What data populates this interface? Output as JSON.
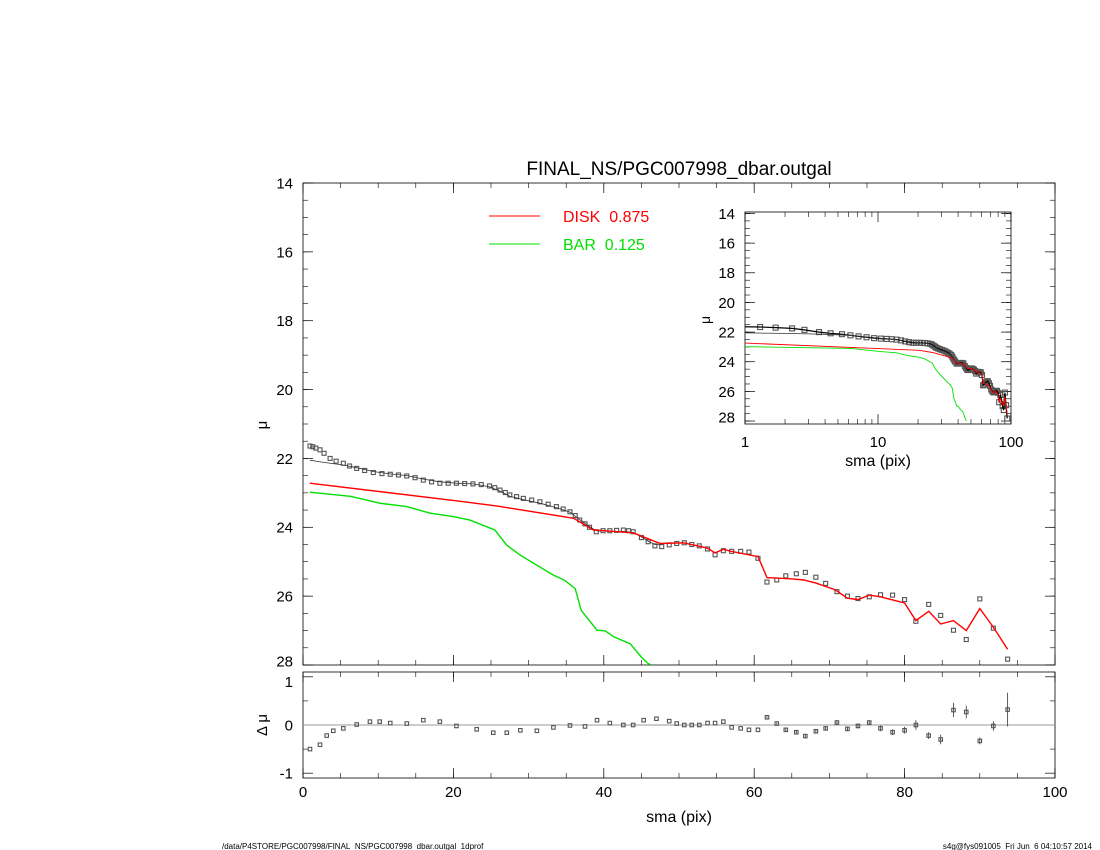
{
  "chart_data": [
    {
      "type": "scatter",
      "panel": "main-profile",
      "title": "FINAL_NS/PGC007998_dbar.outgal",
      "xlabel": "",
      "ylabel": "μ",
      "xlim": [
        0,
        100
      ],
      "ylim": [
        28,
        14
      ],
      "y_inverted": true,
      "xticks": [
        0,
        20,
        40,
        60,
        80,
        100
      ],
      "yticks": [
        14,
        16,
        18,
        20,
        22,
        24,
        26,
        28
      ],
      "legend_position": "top-center",
      "legend": [
        {
          "label": "DISK  0.875",
          "color": "#ff0000"
        },
        {
          "label": "BAR  0.125",
          "color": "#00e000"
        }
      ],
      "data": {
        "x": [
          0.93,
          1.3,
          1.7,
          2.26,
          2.8,
          3.6,
          4.4,
          5.36,
          6.2,
          7.14,
          8.2,
          9.35,
          10.5,
          11.6,
          12.7,
          13.8,
          14.9,
          16.0,
          17.1,
          18.2,
          19.3,
          20.4,
          21.5,
          22.6,
          23.7,
          24.8,
          25.5,
          26.2,
          26.9,
          27.5,
          28.4,
          29.3,
          30.4,
          31.5,
          32.6,
          33.7,
          34.6,
          35.5,
          36.2,
          36.8,
          37.5,
          38.1,
          39.0,
          39.9,
          40.8,
          41.7,
          42.6,
          43.3,
          43.9,
          45.0,
          45.9,
          46.8,
          47.7,
          48.7,
          49.7,
          50.7,
          51.7,
          52.7,
          53.8,
          54.8,
          55.9,
          57.0,
          58.2,
          59.3,
          60.5,
          61.7,
          63.0,
          64.2,
          65.6,
          66.8,
          68.2,
          69.5,
          71.0,
          72.4,
          73.8,
          75.3,
          76.8,
          78.4,
          80.0,
          81.5,
          83.2,
          84.8,
          86.5,
          88.2,
          90.0,
          91.8,
          93.7
        ],
        "y": [
          21.64,
          21.66,
          21.7,
          21.75,
          21.85,
          22.0,
          22.08,
          22.14,
          22.22,
          22.29,
          22.35,
          22.41,
          22.44,
          22.46,
          22.48,
          22.51,
          22.56,
          22.63,
          22.68,
          22.72,
          22.72,
          22.72,
          22.73,
          22.74,
          22.76,
          22.8,
          22.85,
          22.92,
          22.99,
          23.06,
          23.11,
          23.16,
          23.21,
          23.26,
          23.33,
          23.4,
          23.47,
          23.55,
          23.66,
          23.79,
          23.9,
          24.0,
          24.13,
          24.1,
          24.1,
          24.09,
          24.08,
          24.1,
          24.13,
          24.3,
          24.42,
          24.54,
          24.56,
          24.51,
          24.47,
          24.45,
          24.5,
          24.54,
          24.63,
          24.8,
          24.68,
          24.7,
          24.7,
          24.72,
          24.9,
          25.59,
          25.53,
          25.41,
          25.35,
          25.31,
          25.45,
          25.63,
          25.87,
          26.0,
          26.07,
          26.02,
          25.96,
          25.97,
          26.1,
          26.73,
          26.24,
          26.56,
          26.99,
          27.26,
          26.08,
          26.93,
          27.83
        ]
      },
      "total_model": {
        "x": [
          0.93,
          2.0,
          3.0,
          4.0,
          5.0,
          6.0,
          7.14,
          9.35,
          11.6,
          13.8,
          16.0,
          18.2,
          20.4,
          22.6,
          24.8,
          26.2,
          27.5,
          29.3,
          31.5,
          33.7,
          35.5,
          36.8,
          38.1,
          39.0,
          40.8,
          42.6,
          43.9,
          45.0,
          45.9,
          46.8,
          47.7
        ],
        "y": [
          22.05,
          22.09,
          22.12,
          22.15,
          22.18,
          22.22,
          22.27,
          22.38,
          22.45,
          22.5,
          22.6,
          22.68,
          22.72,
          22.74,
          22.82,
          22.95,
          23.1,
          23.2,
          23.3,
          23.43,
          23.56,
          23.78,
          23.98,
          24.1,
          24.12,
          24.12,
          24.15,
          24.28,
          24.4,
          24.5,
          24.5
        ]
      },
      "series": [
        {
          "name": "DISK  0.875",
          "color": "#ff0000",
          "x": [
            0.9,
            20.4,
            25.7,
            36.0,
            38.6,
            43.9,
            47.5,
            50.6,
            53.7,
            54.8,
            55.9,
            57.0,
            60.5,
            61.7,
            65.1,
            66.6,
            68.2,
            70.8,
            72.4,
            73.8,
            75.3,
            76.8,
            80.0,
            81.5,
            83.2,
            84.8,
            86.5,
            88.2,
            90.0,
            91.8,
            93.7
          ],
          "y": [
            22.72,
            23.23,
            23.38,
            23.74,
            24.08,
            24.16,
            24.47,
            24.45,
            24.6,
            24.74,
            24.64,
            24.7,
            24.85,
            25.46,
            25.5,
            25.53,
            25.62,
            25.82,
            26.06,
            26.1,
            25.97,
            26.02,
            26.2,
            26.71,
            26.44,
            26.81,
            26.71,
            27.0,
            26.36,
            26.9,
            27.54
          ]
        },
        {
          "name": "BAR  0.125",
          "color": "#00e000",
          "x": [
            0.9,
            6.3,
            10.2,
            13.8,
            16.9,
            20.0,
            22.2,
            25.5,
            27.1,
            28.9,
            33.3,
            34.8,
            36.2,
            37.0,
            39.1,
            40.2,
            41.3,
            43.5,
            45.0,
            45.9,
            46.3
          ],
          "y": [
            22.98,
            23.1,
            23.3,
            23.4,
            23.59,
            23.69,
            23.79,
            24.08,
            24.52,
            24.81,
            25.39,
            25.54,
            25.78,
            26.41,
            26.99,
            27.01,
            27.18,
            27.38,
            27.77,
            27.96,
            28.0
          ]
        }
      ]
    },
    {
      "type": "scatter",
      "panel": "residuals",
      "xlabel": "sma (pix)",
      "ylabel": "Δ μ",
      "xlim": [
        0,
        100
      ],
      "ylim": [
        -1.1,
        1.1
      ],
      "xticks": [
        0,
        20,
        40,
        60,
        80,
        100
      ],
      "yticks": [
        1,
        0,
        -1
      ],
      "x": [
        0.93,
        2.26,
        3.15,
        4.03,
        5.36,
        7.14,
        8.9,
        10.2,
        11.6,
        13.8,
        16.0,
        18.2,
        20.4,
        23.1,
        25.3,
        27.1,
        28.9,
        31.1,
        33.3,
        35.5,
        37.5,
        39.1,
        40.8,
        42.6,
        43.9,
        45.3,
        47.0,
        48.7,
        49.7,
        50.7,
        51.7,
        52.7,
        53.8,
        54.8,
        55.9,
        57.0,
        58.2,
        59.3,
        60.5,
        61.7,
        63.0,
        64.2,
        65.6,
        66.8,
        68.2,
        69.5,
        71.0,
        72.4,
        73.8,
        75.3,
        76.8,
        78.4,
        80.0,
        81.5,
        83.2,
        84.8,
        86.5,
        88.2,
        90.0,
        91.8,
        93.7
      ],
      "y": [
        -0.5,
        -0.41,
        -0.22,
        -0.12,
        -0.07,
        0.01,
        0.07,
        0.07,
        0.04,
        0.03,
        0.1,
        0.07,
        -0.02,
        -0.09,
        -0.16,
        -0.16,
        -0.11,
        -0.12,
        -0.05,
        -0.01,
        -0.03,
        0.1,
        0.04,
        0,
        0,
        0.1,
        0.13,
        0.08,
        0.03,
        0,
        0,
        0,
        0.04,
        0.04,
        0.07,
        -0.05,
        -0.07,
        -0.1,
        -0.1,
        0.16,
        0.03,
        -0.1,
        -0.15,
        -0.23,
        -0.13,
        -0.07,
        0.05,
        -0.08,
        -0.02,
        0.05,
        -0.07,
        -0.15,
        -0.11,
        0,
        -0.22,
        -0.3,
        0.31,
        0.27,
        -0.33,
        -0.02,
        0.32
      ],
      "err": [
        0,
        0,
        0,
        0,
        0,
        0,
        0,
        0,
        0,
        0,
        0,
        0,
        0,
        0,
        0,
        0,
        0,
        0,
        0,
        0,
        0,
        0,
        0,
        0,
        0,
        0,
        0,
        0,
        0,
        0,
        0,
        0,
        0,
        0,
        0,
        0,
        0,
        0,
        0,
        0.02,
        0.02,
        0.03,
        0.03,
        0.03,
        0.04,
        0.04,
        0.05,
        0.05,
        0.05,
        0.05,
        0.06,
        0.06,
        0.07,
        0.1,
        0.07,
        0.1,
        0.15,
        0.13,
        0.07,
        0.1,
        0.35
      ]
    },
    {
      "type": "scatter",
      "panel": "inset-log",
      "xlabel": "sma (pix)",
      "ylabel": "μ",
      "xscale": "log",
      "xlim": [
        1,
        100
      ],
      "ylim": [
        28.2,
        13.9
      ],
      "y_inverted": true,
      "xticks": [
        "1",
        "10",
        "100"
      ],
      "yticks": [
        14,
        16,
        18,
        20,
        22,
        24,
        26,
        28
      ]
    }
  ],
  "footer": {
    "left": "/data/P4STORE/PGC007998/FINAL_NS/PGC007998_dbar.outgal_1dprof",
    "right": "s4g@fys091005  Fri Jun  6 04:10:57 2014"
  },
  "colors": {
    "data": "#555555",
    "model": "#333333",
    "disk": "#ff0000",
    "bar": "#00e000",
    "frame": "#000000"
  }
}
